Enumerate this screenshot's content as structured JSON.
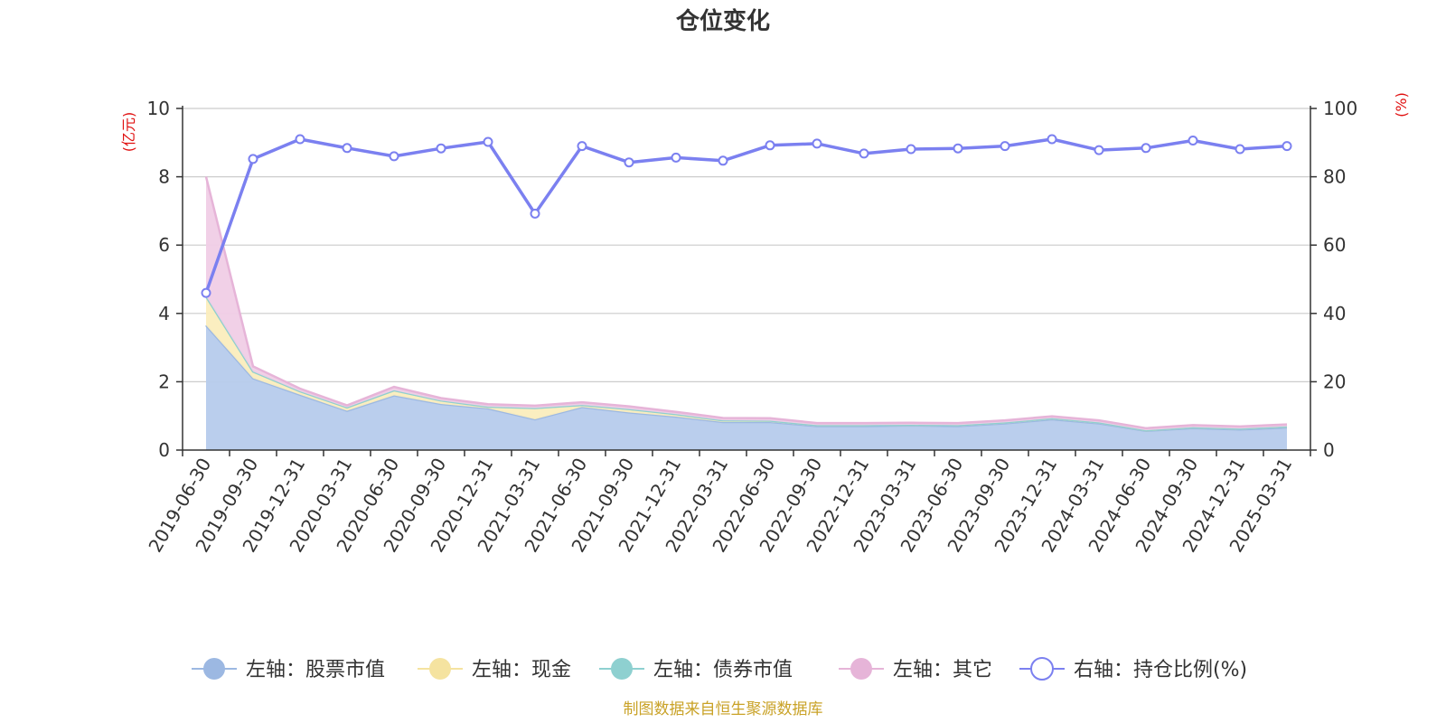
{
  "chart_data": {
    "type": "area",
    "title": "仓位变化",
    "left_axis_unit": "(亿元)",
    "right_axis_unit": "(%)",
    "left_ylim": [
      0,
      10
    ],
    "left_ticks": [
      "0",
      "2",
      "4",
      "6",
      "8",
      "10"
    ],
    "right_ylim": [
      0,
      100
    ],
    "right_ticks": [
      "0",
      "20",
      "40",
      "60",
      "80",
      "100"
    ],
    "grid": true,
    "legend_position": "bottom",
    "categories": [
      "2019-06-30",
      "2019-09-30",
      "2019-12-31",
      "2020-03-31",
      "2020-06-30",
      "2020-09-30",
      "2020-12-31",
      "2021-03-31",
      "2021-06-30",
      "2021-09-30",
      "2021-12-31",
      "2022-03-31",
      "2022-06-30",
      "2022-09-30",
      "2022-12-31",
      "2023-03-31",
      "2023-06-30",
      "2023-09-30",
      "2023-12-31",
      "2024-03-31",
      "2024-06-30",
      "2024-09-30",
      "2024-12-31",
      "2025-03-31"
    ],
    "series": [
      {
        "name": "左轴：股票市值",
        "axis": "left",
        "kind": "stacked-area",
        "color": "#9cb8e2",
        "fill": "#b6cbec",
        "values": [
          3.65,
          2.1,
          1.62,
          1.15,
          1.6,
          1.35,
          1.22,
          0.9,
          1.26,
          1.1,
          0.98,
          0.82,
          0.82,
          0.7,
          0.7,
          0.72,
          0.7,
          0.78,
          0.9,
          0.78,
          0.56,
          0.64,
          0.6,
          0.66
        ]
      },
      {
        "name": "左轴：现金",
        "axis": "left",
        "kind": "stacked-area",
        "color": "#f5e3a0",
        "fill": "#fbedbd",
        "values": [
          0.85,
          0.2,
          0.1,
          0.1,
          0.15,
          0.1,
          0.05,
          0.33,
          0.06,
          0.1,
          0.07,
          0.05,
          0.04,
          0.03,
          0.03,
          0.02,
          0.03,
          0.03,
          0.03,
          0.03,
          0.02,
          0.03,
          0.03,
          0.03
        ]
      },
      {
        "name": "左轴：债券市值",
        "axis": "left",
        "kind": "stacked-area",
        "color": "#8ed0d0",
        "fill": "#b8e3e3",
        "values": [
          0,
          0,
          0,
          0,
          0,
          0,
          0,
          0,
          0,
          0,
          0,
          0,
          0,
          0,
          0,
          0,
          0,
          0,
          0,
          0,
          0,
          0,
          0,
          0
        ]
      },
      {
        "name": "左轴：其它",
        "axis": "left",
        "kind": "stacked-area",
        "color": "#e6b4d8",
        "fill": "#f0cde6",
        "values": [
          3.5,
          0.15,
          0.08,
          0.06,
          0.1,
          0.07,
          0.07,
          0.07,
          0.08,
          0.08,
          0.07,
          0.07,
          0.07,
          0.06,
          0.06,
          0.06,
          0.06,
          0.06,
          0.06,
          0.06,
          0.06,
          0.06,
          0.06,
          0.06
        ]
      },
      {
        "name": "右轴：持仓比例(%)",
        "axis": "right",
        "kind": "line",
        "color": "#7b80f0",
        "values": [
          46,
          85.2,
          91,
          88.4,
          86,
          88.3,
          90.2,
          69.2,
          89,
          84.2,
          85.6,
          84.7,
          89.2,
          89.7,
          86.8,
          88.1,
          88.3,
          89,
          91,
          87.8,
          88.4,
          90.6,
          88.1,
          89
        ]
      }
    ]
  },
  "source_text": "制图数据来自恒生聚源数据库"
}
